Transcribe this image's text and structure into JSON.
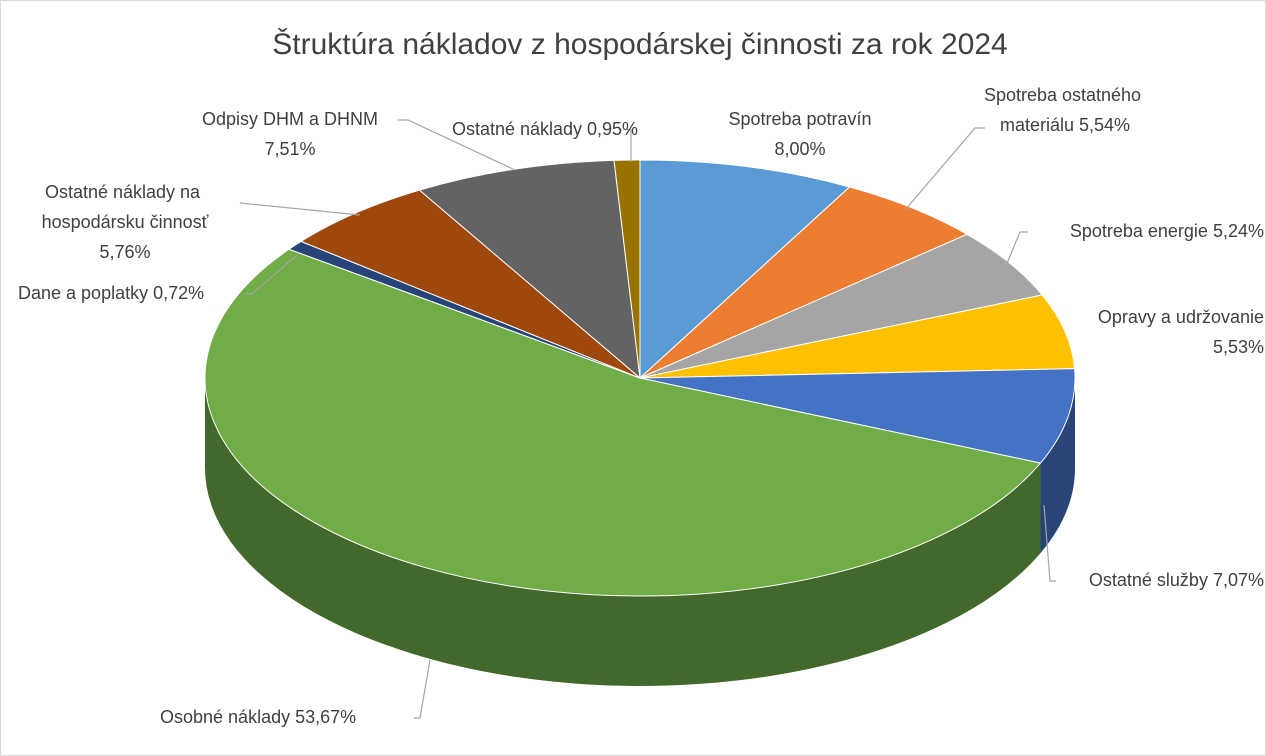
{
  "chart_data": {
    "type": "pie3d",
    "title": "Štruktúra nákladov z hospodárskej činnosti za rok 2024",
    "categories": [
      "Spotreba potravín",
      "Spotreba ostatného materiálu",
      "Spotreba energie",
      "Opravy a udržovanie",
      "Ostatné služby",
      "Osobné náklady",
      "Dane a poplatky",
      "Ostatné náklady na hospodársku činnosť",
      "Odpisy DHM a DHNM",
      "Ostatné náklady"
    ],
    "values": [
      8.0,
      5.54,
      5.24,
      5.53,
      7.07,
      53.67,
      0.72,
      5.76,
      7.51,
      0.95
    ],
    "value_labels": [
      "8,00%",
      "5,54%",
      "5,24%",
      "5,53%",
      "7,07%",
      "53,67%",
      "0,72%",
      "5,76%",
      "7,51%",
      "0,95%"
    ],
    "colors": [
      "#5b9bd5",
      "#ed7d31",
      "#a5a5a5",
      "#ffc000",
      "#4472c4",
      "#70ad47",
      "#264478",
      "#9e480e",
      "#636363",
      "#997300"
    ]
  }
}
